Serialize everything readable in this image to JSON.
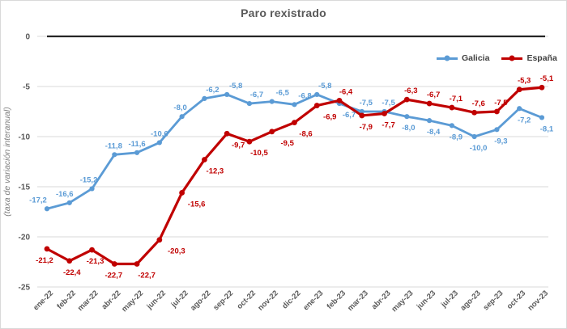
{
  "chart_data": {
    "type": "line",
    "title": "Paro rexistrado",
    "ylabel": "(taxa de variación interanual)",
    "xlabel": "",
    "categories": [
      "ene-22",
      "feb-22",
      "mar-22",
      "abr-22",
      "may-22",
      "jun-22",
      "jul-22",
      "ago-22",
      "sep-22",
      "oct-22",
      "nov-22",
      "dic-22",
      "ene-23",
      "feb-23",
      "mar-23",
      "abr-23",
      "may-23",
      "jun-23",
      "jul-23",
      "ago-23",
      "sep-23",
      "oct-23",
      "nov-23"
    ],
    "series": [
      {
        "name": "Galicia",
        "color": "#5B9BD5",
        "values": [
          -17.2,
          -16.6,
          -15.2,
          -11.8,
          -11.6,
          -10.6,
          -8.0,
          -6.2,
          -5.8,
          -6.7,
          -6.5,
          -6.8,
          -5.8,
          -6.7,
          -7.5,
          -7.5,
          -8.0,
          -8.4,
          -8.9,
          -10.0,
          -9.3,
          -7.2,
          -8.1
        ],
        "labels": [
          "-17,2",
          "-16,6",
          "-15,2",
          "-11,8",
          "-11,6",
          "-10,6",
          "-8,0",
          "-6,2",
          "-5,8",
          "-6,7",
          "-6,5",
          "-6,8",
          "-5,8",
          "-6,7",
          "-7,5",
          "-7,5",
          "-8,0",
          "-8,4",
          "-8,9",
          "-10,0",
          "-9,3",
          "-7,2",
          "-8,1"
        ],
        "label_dx": [
          -11,
          -6,
          -4,
          -1,
          0,
          0,
          -2,
          10,
          11,
          9,
          13,
          13,
          10,
          12,
          5,
          5,
          2,
          5,
          5,
          5,
          5,
          6,
          6
        ]
      },
      {
        "name": "España",
        "color": "#C00000",
        "values": [
          -21.2,
          -22.4,
          -21.3,
          -22.7,
          -22.7,
          -20.3,
          -15.6,
          -12.3,
          -9.7,
          -10.5,
          -9.5,
          -8.6,
          -6.9,
          -6.4,
          -7.9,
          -7.7,
          -6.3,
          -6.7,
          -7.1,
          -7.6,
          -7.5,
          -5.3,
          -5.1
        ],
        "labels": [
          "-21,2",
          "-22,4",
          "-21,3",
          "-22,7",
          "-22,7",
          "-20,3",
          "-15,6",
          "-12,3",
          "-9,7",
          "-10,5",
          "-9,5",
          "-8,6",
          "-6,9",
          "-6,4",
          "-7,9",
          "-7,7",
          "-6,3",
          "-6,7",
          "-7,1",
          "-7,6",
          "-7,5",
          "-5,3",
          "-5,1"
        ],
        "label_dx": [
          -3,
          3,
          4,
          -1,
          12,
          21,
          18,
          13,
          14,
          12,
          19,
          14,
          16,
          8,
          5,
          5,
          5,
          5,
          5,
          5,
          5,
          6,
          6
        ]
      }
    ],
    "yticks": [
      0,
      -5,
      -10,
      -15,
      -20,
      -25
    ],
    "ytick_labels": [
      "0",
      "-5",
      "-10",
      "-15",
      "-20",
      "-25"
    ],
    "ylim": [
      -25,
      0
    ],
    "grid": "horizontal",
    "zero_line": true,
    "legend_position": "top-right",
    "colors": {
      "grid": "#D9D9D9",
      "zero_line": "#262626",
      "axis_text": "#595959",
      "title_text": "#595959",
      "ylabel_text": "#7F7F7F"
    }
  }
}
